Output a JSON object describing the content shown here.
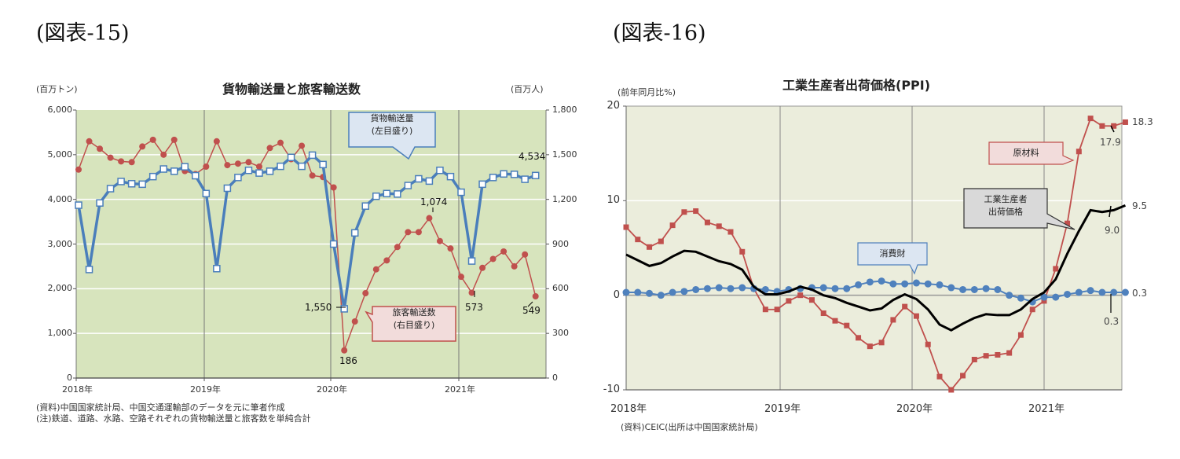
{
  "figures": [
    {
      "label": "(図表-15)",
      "title": "貨物輸送量と旅客輸送数",
      "left_unit": "(百万トン)",
      "right_unit": "(百万人)",
      "left_ticks": [
        "6,000",
        "5,000",
        "4,000",
        "3,000",
        "2,000",
        "1,000",
        "0"
      ],
      "right_ticks": [
        "1,800",
        "1,500",
        "1,200",
        "900",
        "600",
        "300",
        "0"
      ],
      "x_ticks": [
        "2018年",
        "2019年",
        "2020年",
        "2021年"
      ],
      "callouts": {
        "freight": [
          "貨物輸送量",
          "(左目盛り)"
        ],
        "passenger": [
          "旅客輸送数",
          "(右目盛り)"
        ]
      },
      "annotations": {
        "freight_min": "1,550",
        "freight_last": "4,534",
        "pass_min": "186",
        "pass_peak": "1,074",
        "pass_2021_feb": "573",
        "pass_last": "549"
      },
      "notes": [
        "(資料)中国国家統計局、中国交通運輸部のデータを元に筆者作成",
        "(注)鉄道、道路、水路、空路それぞれの貨物輸送量と旅客数を単純合計"
      ]
    },
    {
      "label": "(図表-16)",
      "title": "工業生産者出荷価格(PPI)",
      "left_unit": "(前年同月比%)",
      "left_ticks": [
        "20",
        "10",
        "0",
        "-10"
      ],
      "x_ticks": [
        "2018年",
        "2019年",
        "2020年",
        "2021年"
      ],
      "callouts": {
        "raw": [
          "原材料"
        ],
        "ppi": [
          "工業生産者",
          "出荷価格"
        ],
        "consumer": [
          "消費財"
        ]
      },
      "annotations": {
        "raw_last": "18.3",
        "raw_prev": "17.9",
        "ppi_last": "9.5",
        "ppi_prev": "9.0",
        "cons_last": "0.3",
        "cons_prev": "0.3"
      },
      "notes": [
        "(資料)CEIC(出所は中国国家統計局)"
      ]
    }
  ],
  "colors": {
    "freight": "#4a7ebb",
    "passenger": "#c0504d",
    "plot_bg_left": "#d7e4bd",
    "plot_bg_right": "#ebeddc",
    "ppi": "#000000",
    "consumer": "#4f81bd",
    "raw": "#c0504d"
  },
  "chart_data": [
    {
      "type": "line",
      "title": "貨物輸送量と旅客輸送数",
      "x": "monthly 2018-01 to 2021-08",
      "xlabel": "",
      "ylabel": "百万トン",
      "y2label": "百万人",
      "ylim": [
        0,
        6000
      ],
      "y2lim": [
        0,
        1800
      ],
      "x_ticks": [
        "2018年",
        "2019年",
        "2020年",
        "2021年"
      ],
      "series": [
        {
          "name": "貨物輸送量(左目盛り)",
          "axis": "left",
          "values": [
            3870,
            2430,
            3920,
            4240,
            4400,
            4350,
            4340,
            4510,
            4680,
            4630,
            4730,
            4530,
            4130,
            2450,
            4250,
            4490,
            4650,
            4590,
            4630,
            4740,
            4940,
            4740,
            4990,
            4780,
            3000,
            1550,
            3250,
            3850,
            4070,
            4130,
            4120,
            4310,
            4460,
            4410,
            4650,
            4510,
            4160,
            2620,
            4340,
            4490,
            4570,
            4560,
            4450,
            4534
          ]
        },
        {
          "name": "旅客輸送数(右目盛り)",
          "axis": "right",
          "values": [
            1400,
            1590,
            1540,
            1480,
            1455,
            1450,
            1555,
            1600,
            1500,
            1600,
            1390,
            1370,
            1420,
            1590,
            1430,
            1440,
            1450,
            1420,
            1545,
            1580,
            1470,
            1560,
            1360,
            1350,
            1280,
            186,
            380,
            570,
            730,
            790,
            880,
            980,
            980,
            1074,
            920,
            870,
            680,
            573,
            740,
            800,
            850,
            750,
            830,
            549
          ]
        }
      ]
    },
    {
      "type": "line",
      "title": "工業生産者出荷価格(PPI)",
      "x": "monthly 2018-01 to 2021-08",
      "ylabel": "前年同月比%",
      "ylim": [
        -10,
        20
      ],
      "x_ticks": [
        "2018年",
        "2019年",
        "2020年",
        "2021年"
      ],
      "series": [
        {
          "name": "原材料",
          "values": [
            7.2,
            5.9,
            5.1,
            5.7,
            7.4,
            8.8,
            8.9,
            7.7,
            7.3,
            6.7,
            4.6,
            0.7,
            -1.5,
            -1.5,
            -0.6,
            0.0,
            -0.5,
            -1.9,
            -2.7,
            -3.2,
            -4.5,
            -5.4,
            -5.0,
            -2.6,
            -1.2,
            -2.2,
            -5.2,
            -8.6,
            -10.0,
            -8.5,
            -6.8,
            -6.4,
            -6.3,
            -6.1,
            -4.2,
            -1.5,
            -0.6,
            2.8,
            7.6,
            15.2,
            18.7,
            17.9,
            17.9,
            18.3
          ]
        },
        {
          "name": "工業生産者出荷価格",
          "values": [
            4.3,
            3.7,
            3.1,
            3.4,
            4.1,
            4.7,
            4.6,
            4.1,
            3.6,
            3.3,
            2.7,
            0.9,
            0.1,
            0.1,
            0.4,
            0.9,
            0.6,
            0.0,
            -0.3,
            -0.8,
            -1.2,
            -1.6,
            -1.4,
            -0.5,
            0.1,
            -0.4,
            -1.5,
            -3.1,
            -3.7,
            -3.0,
            -2.4,
            -2.0,
            -2.1,
            -2.1,
            -1.5,
            -0.4,
            0.3,
            1.7,
            4.4,
            6.8,
            9.0,
            8.8,
            9.0,
            9.5
          ]
        },
        {
          "name": "消費財",
          "values": [
            0.3,
            0.3,
            0.2,
            0.0,
            0.3,
            0.4,
            0.6,
            0.7,
            0.8,
            0.7,
            0.8,
            0.7,
            0.6,
            0.4,
            0.6,
            0.7,
            0.8,
            0.8,
            0.7,
            0.7,
            1.1,
            1.4,
            1.5,
            1.2,
            1.2,
            1.3,
            1.2,
            1.1,
            0.8,
            0.6,
            0.6,
            0.7,
            0.6,
            0.0,
            -0.3,
            -0.7,
            -0.2,
            -0.2,
            0.1,
            0.3,
            0.5,
            0.3,
            0.3,
            0.3
          ]
        }
      ]
    }
  ]
}
